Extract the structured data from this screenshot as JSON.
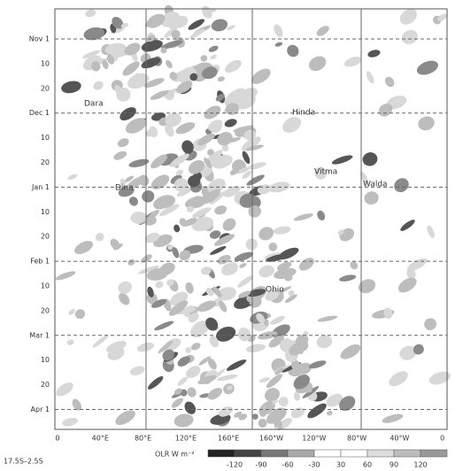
{
  "figure": {
    "y_labels": [
      "Nov 1",
      "10",
      "20",
      "Dec 1",
      "10",
      "20",
      "Jan 1",
      "10",
      "20",
      "Feb 1",
      "10",
      "20",
      "Mar 1",
      "10",
      "20",
      "Apr 1"
    ],
    "x_labels": [
      "0",
      "40°E",
      "80°E",
      "120°E",
      "160°E",
      "160°W",
      "120°W",
      "80°W",
      "40°W",
      "0"
    ],
    "region_label": "17.5S–2.5S",
    "colorbar": {
      "title": "OLR W m⁻²",
      "labels": [
        "-120",
        "-90",
        "-60",
        "-30",
        "30",
        "60",
        "90",
        "120"
      ]
    },
    "annotations": [
      "Dara",
      "Hinda",
      "Vitma",
      "Walda",
      "Ohio",
      "Dina"
    ]
  }
}
